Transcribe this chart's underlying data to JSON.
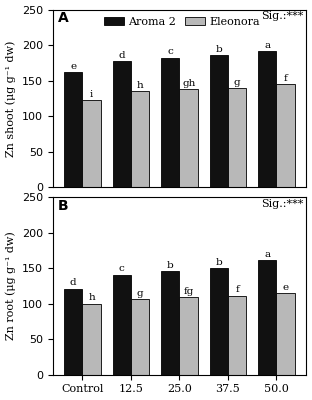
{
  "panel_A": {
    "title": "A",
    "ylabel": "Zn shoot (μg g⁻¹ dw)",
    "ylim": [
      0,
      250
    ],
    "yticks": [
      0,
      50,
      100,
      150,
      200,
      250
    ],
    "sig_text": "Sig.:***",
    "aroma2_values": [
      162,
      177,
      182,
      186,
      191
    ],
    "eleonora_values": [
      122,
      135,
      138,
      139,
      145
    ],
    "aroma2_letters": [
      "e",
      "d",
      "c",
      "b",
      "a"
    ],
    "eleonora_letters": [
      "i",
      "h",
      "gh",
      "g",
      "f"
    ]
  },
  "panel_B": {
    "title": "B",
    "ylabel": "Zn root (μg g⁻¹ dw)",
    "ylim": [
      0,
      250
    ],
    "yticks": [
      0,
      50,
      100,
      150,
      200,
      250
    ],
    "sig_text": "Sig.:***",
    "aroma2_values": [
      121,
      141,
      146,
      150,
      161
    ],
    "eleonora_values": [
      100,
      106,
      109,
      111,
      115
    ],
    "aroma2_letters": [
      "d",
      "c",
      "b",
      "b",
      "a"
    ],
    "eleonora_letters": [
      "h",
      "g",
      "fg",
      "f",
      "e"
    ]
  },
  "categories": [
    "Control",
    "12.5",
    "25.0",
    "37.5",
    "50.0"
  ],
  "aroma2_color": "#111111",
  "eleonora_color": "#b8b8b8",
  "bar_width": 0.38,
  "legend_labels": [
    "Aroma 2",
    "Eleonora"
  ],
  "letter_fontsize": 7.5,
  "axis_fontsize": 8,
  "tick_fontsize": 8,
  "sig_fontsize": 8,
  "panel_label_fontsize": 10
}
